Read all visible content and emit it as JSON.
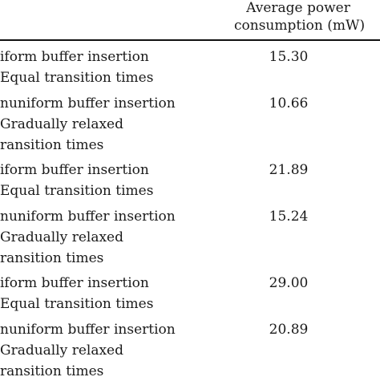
{
  "header": {
    "col2_line1": "Average power",
    "col2_line2": "consumption (mW)"
  },
  "rows": [
    {
      "lines": [
        "iform buffer insertion",
        "Equal transition times"
      ],
      "value": "15.30"
    },
    {
      "lines": [
        "nuniform buffer insertion",
        "Gradually relaxed",
        "ransition times"
      ],
      "value": "10.66"
    },
    {
      "lines": [
        "iform buffer insertion",
        "Equal transition times"
      ],
      "value": "21.89"
    },
    {
      "lines": [
        "nuniform buffer insertion",
        "Gradually relaxed",
        "ransition times"
      ],
      "value": "15.24"
    },
    {
      "lines": [
        "iform buffer insertion",
        "Equal transition times"
      ],
      "value": "29.00"
    },
    {
      "lines": [
        "nuniform buffer insertion",
        "Gradually relaxed",
        "ransition times"
      ],
      "value": "20.89"
    }
  ]
}
